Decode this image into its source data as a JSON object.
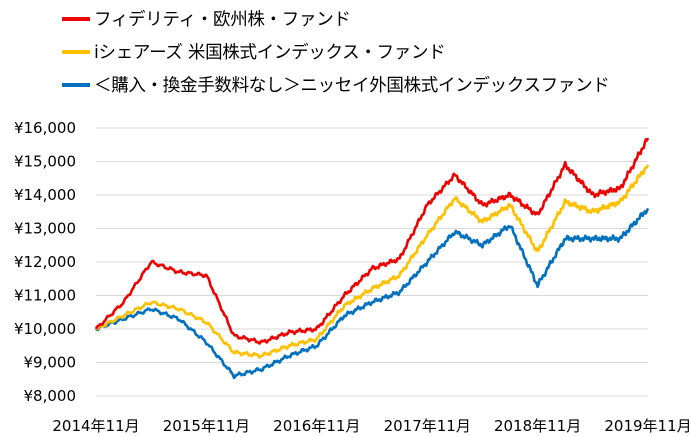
{
  "chart_data": {
    "type": "line",
    "title": "",
    "xlabel": "",
    "ylabel": "",
    "x_ticks": [
      "2014年11月",
      "2015年11月",
      "2016年11月",
      "2017年11月",
      "2018年11月",
      "2019年11月"
    ],
    "y_ticks": [
      "¥8,000",
      "¥9,000",
      "¥10,000",
      "¥11,000",
      "¥12,000",
      "¥13,000",
      "¥14,000",
      "¥15,000",
      "¥16,000"
    ],
    "ylim": [
      8000,
      16000
    ],
    "grid": "horizontal",
    "legend_position": "top",
    "x": [
      "2014-11",
      "2015-02",
      "2015-05",
      "2015-08",
      "2015-11",
      "2016-02",
      "2016-05",
      "2016-08",
      "2016-11",
      "2017-02",
      "2017-05",
      "2017-08",
      "2017-11",
      "2018-02",
      "2018-05",
      "2018-08",
      "2018-11",
      "2019-02",
      "2019-05",
      "2019-08",
      "2019-11"
    ],
    "series": [
      {
        "name": "フィデリティ・欧州株・ファンド",
        "color": "#ee0000",
        "values": [
          10000,
          10800,
          12000,
          11700,
          11600,
          9800,
          9600,
          9900,
          10000,
          11000,
          11800,
          12100,
          13700,
          14600,
          13700,
          14000,
          13400,
          14900,
          14000,
          14200,
          15700
        ]
      },
      {
        "name": "iシェアーズ 米国株式インデックス・ファンド",
        "color": "#ffc000",
        "values": [
          10000,
          10400,
          10800,
          10600,
          10200,
          9300,
          9200,
          9500,
          9700,
          10700,
          11200,
          11600,
          12800,
          13900,
          13200,
          13700,
          12300,
          13800,
          13500,
          13800,
          14900
        ]
      },
      {
        "name": "＜購入・換金手数料なし＞ニッセイ外国株式インデックスファンド",
        "color": "#0070c0",
        "values": [
          10000,
          10300,
          10600,
          10300,
          9600,
          8600,
          8800,
          9200,
          9500,
          10400,
          10800,
          11100,
          12000,
          12900,
          12500,
          13100,
          11300,
          12700,
          12700,
          12700,
          13600
        ]
      }
    ]
  }
}
